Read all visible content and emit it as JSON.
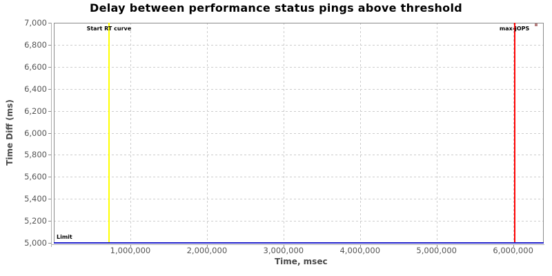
{
  "chart_data": {
    "type": "scatter",
    "title": "Delay between performance status pings above threshold",
    "xlabel": "Time, msec",
    "ylabel": "Time Diff (ms)",
    "xlim": [
      0,
      6400000
    ],
    "ylim": [
      5000,
      7000
    ],
    "grid": "dashed",
    "grid_color": "#cccccc",
    "legend": "none",
    "x_ticks": [
      {
        "value": 1000000,
        "label": "1,000,000"
      },
      {
        "value": 2000000,
        "label": "2,000,000"
      },
      {
        "value": 3000000,
        "label": "3,000,000"
      },
      {
        "value": 4000000,
        "label": "4,000,000"
      },
      {
        "value": 5000000,
        "label": "5,000,000"
      },
      {
        "value": 6000000,
        "label": "6,000,000"
      }
    ],
    "y_ticks": [
      {
        "value": 5000,
        "label": "5,000"
      },
      {
        "value": 5200,
        "label": "5,200"
      },
      {
        "value": 5400,
        "label": "5,400"
      },
      {
        "value": 5600,
        "label": "5,600"
      },
      {
        "value": 5800,
        "label": "5,800"
      },
      {
        "value": 6000,
        "label": "6,000"
      },
      {
        "value": 6200,
        "label": "6,200"
      },
      {
        "value": 6400,
        "label": "6,400"
      },
      {
        "value": 6600,
        "label": "6,600"
      },
      {
        "value": 6800,
        "label": "6,800"
      },
      {
        "value": 7000,
        "label": "7,000"
      }
    ],
    "markers": [
      {
        "orientation": "vertical",
        "value": 720000,
        "label": "Start RT curve",
        "color": "#ffff00"
      },
      {
        "orientation": "vertical",
        "value": 6018000,
        "label": "max-jOPS",
        "color": "#ff0000"
      },
      {
        "orientation": "horizontal",
        "value": 5000,
        "label": "Limit",
        "color": "#2222cc"
      }
    ],
    "points": [
      {
        "x": 6300000,
        "y": 6980,
        "color": "#b57e7e"
      }
    ]
  }
}
